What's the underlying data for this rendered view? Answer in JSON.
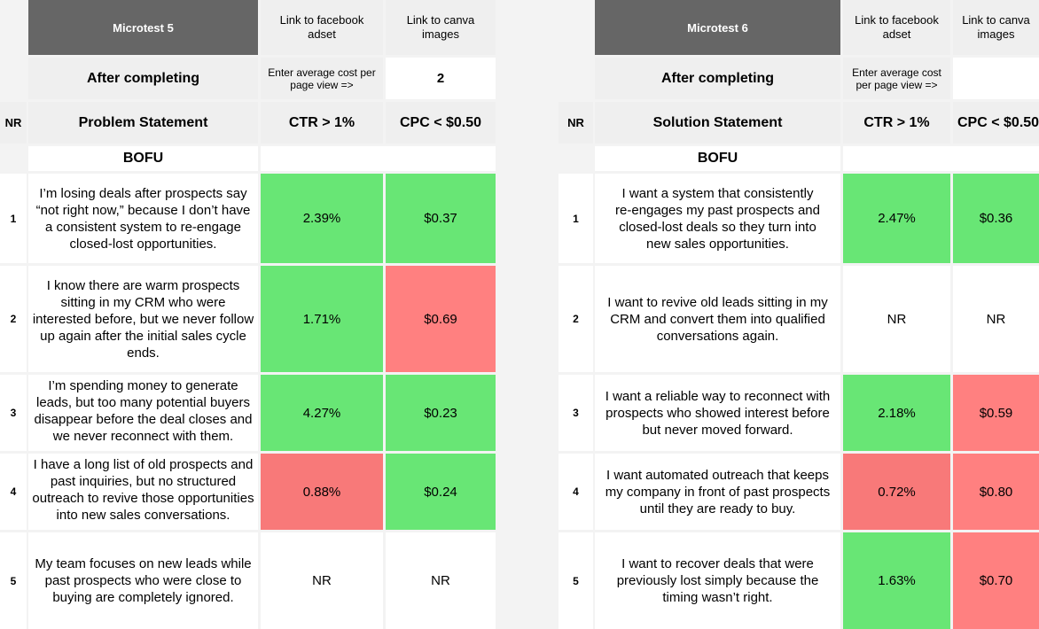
{
  "left": {
    "microtest_title": "Microtest 5",
    "link_facebook": "Link to facebook adset",
    "link_canva": "Link to canva images",
    "after_completing": "After completing",
    "cost_prompt": "Enter average cost per page view =>",
    "cost_value": "2",
    "col_nr": "NR",
    "col_statement": "Problem Statement",
    "col_ctr": "CTR > 1%",
    "col_cpc": "CPC < $0.50",
    "section": "BOFU",
    "rows": [
      {
        "nr": "1",
        "text": "I’m losing deals after prospects say “not right now,” because I don’t have a consistent system to re-engage closed-lost opportunities.",
        "ctr": "2.39%",
        "cpc": "$0.37"
      },
      {
        "nr": "2",
        "text": "I know there are warm prospects sitting in my CRM who were interested before, but we never follow up again after the initial sales cycle ends.",
        "ctr": "1.71%",
        "cpc": "$0.69"
      },
      {
        "nr": "3",
        "text": "I’m spending money to generate leads, but too many potential buyers disappear before the deal closes and we never reconnect with them.",
        "ctr": "4.27%",
        "cpc": "$0.23"
      },
      {
        "nr": "4",
        "text": "I have a long list of old prospects and past inquiries, but no structured outreach to revive those opportunities into new sales conversations.",
        "ctr": "0.88%",
        "cpc": "$0.24"
      },
      {
        "nr": "5",
        "text": "My team focuses on new leads while past prospects who were close to buying are completely ignored.",
        "ctr": "NR",
        "cpc": "NR"
      }
    ]
  },
  "right": {
    "microtest_title": "Microtest 6",
    "link_facebook": "Link to facebook adset",
    "link_canva": "Link to canva images",
    "after_completing": "After completing",
    "cost_prompt": "Enter average cost per page view =>",
    "col_nr": "NR",
    "col_statement": "Solution Statement",
    "col_ctr": "CTR > 1%",
    "col_cpc": "CPC < $0.50",
    "section": "BOFU",
    "rows": [
      {
        "nr": "1",
        "text": "I want a system that consistently re-engages my past prospects and closed-lost deals so they turn into new sales opportunities.",
        "ctr": "2.47%",
        "cpc": "$0.36"
      },
      {
        "nr": "2",
        "text": "I want to revive old leads sitting in my CRM and convert them into qualified conversations again.",
        "ctr": "NR",
        "cpc": "NR"
      },
      {
        "nr": "3",
        "text": "I want a reliable way to reconnect with prospects who showed interest before but never moved forward.",
        "ctr": "2.18%",
        "cpc": "$0.59"
      },
      {
        "nr": "4",
        "text": "I want automated outreach that keeps my company in front of past prospects until they are ready to buy.",
        "ctr": "0.72%",
        "cpc": "$0.80"
      },
      {
        "nr": "5",
        "text": "I want to recover deals that were previously lost simply because the timing wasn’t right.",
        "ctr": "1.63%",
        "cpc": "$0.70"
      }
    ]
  },
  "colors": {
    "pass": "#68e675",
    "fail": "#ff8080",
    "header_dark": "#666666",
    "header_light": "#efefef"
  }
}
